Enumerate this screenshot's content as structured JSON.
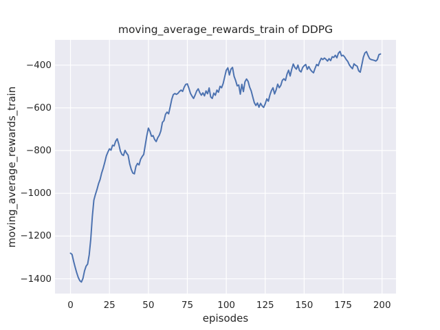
{
  "colors": {
    "figure_background": "#ffffff",
    "plot_background": "#eaeaf2",
    "gridline": "#ffffff",
    "line": "#4c72b0",
    "text": "#262626"
  },
  "chart_data": {
    "type": "line",
    "title": "moving_average_rewards_train of DDPG",
    "xlabel": "episodes",
    "ylabel": "moving_average_rewards_train",
    "grid": true,
    "legend_position": "none",
    "xlim": [
      -9.95,
      208.95
    ],
    "ylim": [
      -1469,
      -282
    ],
    "x_ticks": [
      0,
      25,
      50,
      75,
      100,
      125,
      150,
      175,
      200
    ],
    "x_tick_labels": [
      "0",
      "25",
      "50",
      "75",
      "100",
      "125",
      "150",
      "175",
      "200"
    ],
    "y_ticks": [
      -400,
      -600,
      -800,
      -1000,
      -1200,
      -1400
    ],
    "y_tick_labels": [
      "−400",
      "−600",
      "−800",
      "−1000",
      "−1200",
      "−1400"
    ],
    "series": [
      {
        "name": "moving_average_rewards_train",
        "color": "#4c72b0",
        "x_start": 0,
        "x_step": 1,
        "values": [
          -1280,
          -1286,
          -1318,
          -1346,
          -1372,
          -1394,
          -1409,
          -1415,
          -1398,
          -1363,
          -1341,
          -1331,
          -1288,
          -1215,
          -1110,
          -1032,
          -1005,
          -982,
          -955,
          -935,
          -905,
          -882,
          -855,
          -825,
          -807,
          -792,
          -798,
          -775,
          -778,
          -756,
          -745,
          -770,
          -802,
          -818,
          -823,
          -799,
          -812,
          -822,
          -862,
          -888,
          -905,
          -909,
          -874,
          -860,
          -867,
          -841,
          -828,
          -818,
          -774,
          -730,
          -695,
          -710,
          -733,
          -730,
          -748,
          -758,
          -740,
          -728,
          -708,
          -668,
          -660,
          -630,
          -620,
          -628,
          -595,
          -560,
          -538,
          -533,
          -537,
          -532,
          -523,
          -517,
          -523,
          -503,
          -490,
          -488,
          -508,
          -532,
          -545,
          -556,
          -540,
          -521,
          -511,
          -529,
          -541,
          -530,
          -544,
          -521,
          -534,
          -507,
          -549,
          -556,
          -531,
          -541,
          -517,
          -527,
          -499,
          -506,
          -486,
          -455,
          -424,
          -413,
          -446,
          -419,
          -411,
          -452,
          -472,
          -497,
          -493,
          -536,
          -490,
          -524,
          -478,
          -465,
          -476,
          -503,
          -521,
          -549,
          -576,
          -589,
          -577,
          -597,
          -579,
          -591,
          -598,
          -581,
          -558,
          -569,
          -540,
          -519,
          -506,
          -535,
          -516,
          -489,
          -506,
          -495,
          -471,
          -464,
          -472,
          -442,
          -424,
          -451,
          -420,
          -395,
          -411,
          -419,
          -400,
          -426,
          -432,
          -412,
          -403,
          -397,
          -420,
          -407,
          -421,
          -430,
          -436,
          -415,
          -397,
          -403,
          -383,
          -368,
          -374,
          -367,
          -373,
          -381,
          -370,
          -379,
          -361,
          -364,
          -354,
          -366,
          -344,
          -336,
          -357,
          -354,
          -362,
          -374,
          -383,
          -399,
          -409,
          -417,
          -394,
          -401,
          -405,
          -427,
          -433,
          -399,
          -363,
          -343,
          -337,
          -355,
          -370,
          -374,
          -376,
          -378,
          -381,
          -374,
          -351,
          -348
        ]
      }
    ]
  }
}
